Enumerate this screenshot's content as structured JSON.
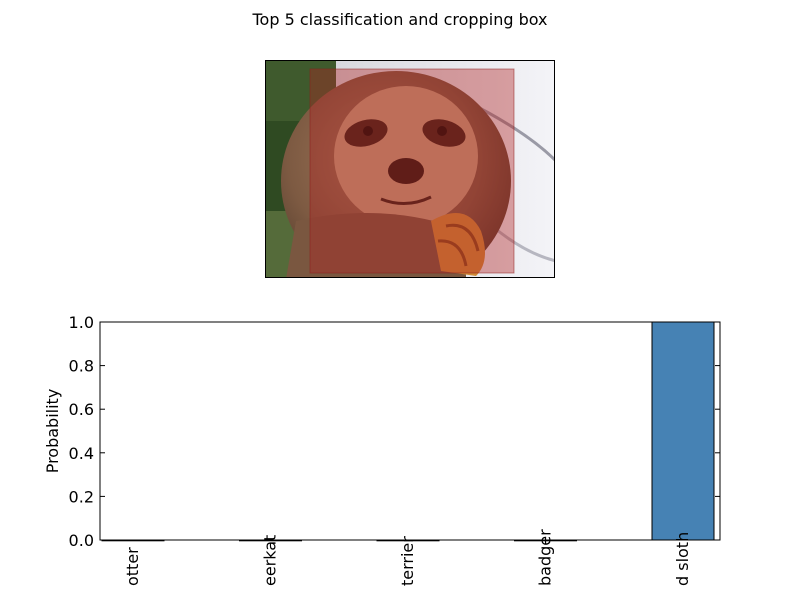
{
  "figure": {
    "title": "Top 5 classification and cropping box"
  },
  "image_panel": {
    "subject_icon": "sloth-photo",
    "crop_box_color": "#b22222",
    "crop_box_opacity": 0.4
  },
  "chart_data": {
    "type": "bar",
    "title": "",
    "xlabel": "",
    "ylabel": "Probability",
    "categories": [
      "otter",
      "meerkat",
      "terrier",
      "badger",
      "three-toed sloth"
    ],
    "visible_tick_text": [
      "otter",
      "eerkat",
      "terrier",
      "badger",
      "d sloth"
    ],
    "values": [
      0.0,
      0.0,
      0.0,
      0.0,
      1.0
    ],
    "ylim": [
      0.0,
      1.0
    ],
    "yticks": [
      "0.0",
      "0.2",
      "0.4",
      "0.6",
      "0.8",
      "1.0"
    ],
    "bar_color": "#4682b4",
    "grid": false
  }
}
